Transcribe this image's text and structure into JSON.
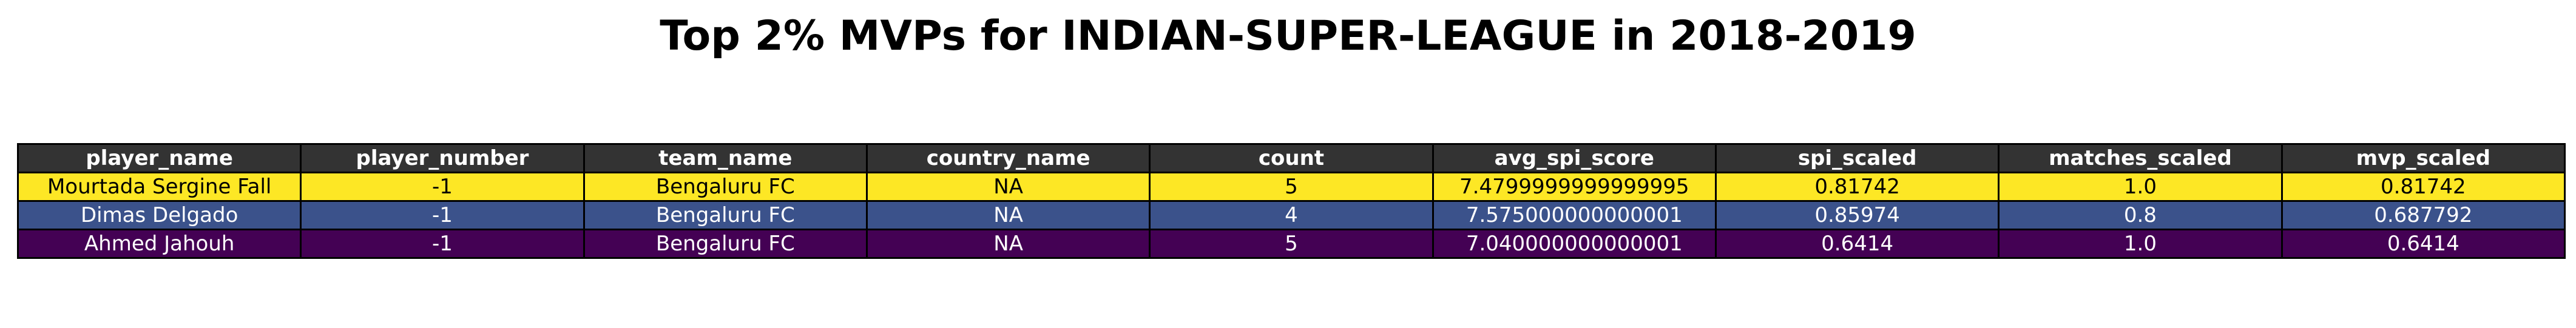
{
  "chart_data": {
    "type": "table",
    "title": "Top 2% MVPs for INDIAN-SUPER-LEAGUE in 2018-2019",
    "columns": [
      "player_name",
      "player_number",
      "team_name",
      "country_name",
      "count",
      "avg_spi_score",
      "spi_scaled",
      "matches_scaled",
      "mvp_scaled"
    ],
    "rows": [
      [
        "Mourtada Sergine Fall",
        "-1",
        "Bengaluru FC",
        "NA",
        "5",
        "7.4799999999999995",
        "0.81742",
        "1.0",
        "0.81742"
      ],
      [
        "Dimas Delgado",
        "-1",
        "Bengaluru FC",
        "NA",
        "4",
        "7.575000000000001",
        "0.85974",
        "0.8",
        "0.687792"
      ],
      [
        "Ahmed Jahouh",
        "-1",
        "Bengaluru FC",
        "NA",
        "5",
        "7.040000000000001",
        "0.6414",
        "1.0",
        "0.6414"
      ]
    ],
    "row_colors": [
      "#fde725",
      "#3b528b",
      "#440154"
    ],
    "row_text_colors": [
      "#000000",
      "#ffffff",
      "#ffffff"
    ],
    "header_color": "#333333",
    "header_text_color": "#ffffff"
  }
}
